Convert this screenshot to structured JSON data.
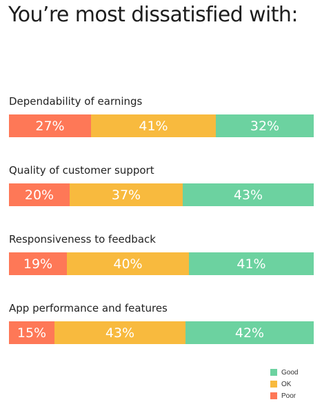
{
  "title": "You’re most dissatisfied with:",
  "colors": {
    "poor": "#FE7857",
    "ok": "#F8BA3E",
    "good": "#6CD2A0"
  },
  "chart_data": {
    "type": "bar",
    "orientation": "horizontal",
    "stacked": true,
    "normalized": "percent",
    "title": "You’re most dissatisfied with:",
    "categories": [
      "Dependability of earnings",
      "Quality of customer support",
      "Responsiveness to feedback",
      "App performance and features"
    ],
    "series": [
      {
        "name": "Poor",
        "color": "#FE7857",
        "values": [
          27,
          20,
          19,
          15
        ]
      },
      {
        "name": "OK",
        "color": "#F8BA3E",
        "values": [
          41,
          37,
          40,
          43
        ]
      },
      {
        "name": "Good",
        "color": "#6CD2A0",
        "values": [
          32,
          43,
          41,
          42
        ]
      }
    ],
    "data_labels": [
      [
        "27%",
        "41%",
        "32%"
      ],
      [
        "20%",
        "37%",
        "43%"
      ],
      [
        "19%",
        "40%",
        "41%"
      ],
      [
        "15%",
        "43%",
        "42%"
      ]
    ],
    "legend": [
      "Good",
      "OK",
      "Poor"
    ],
    "legend_position": "bottom-right",
    "grid": false
  }
}
